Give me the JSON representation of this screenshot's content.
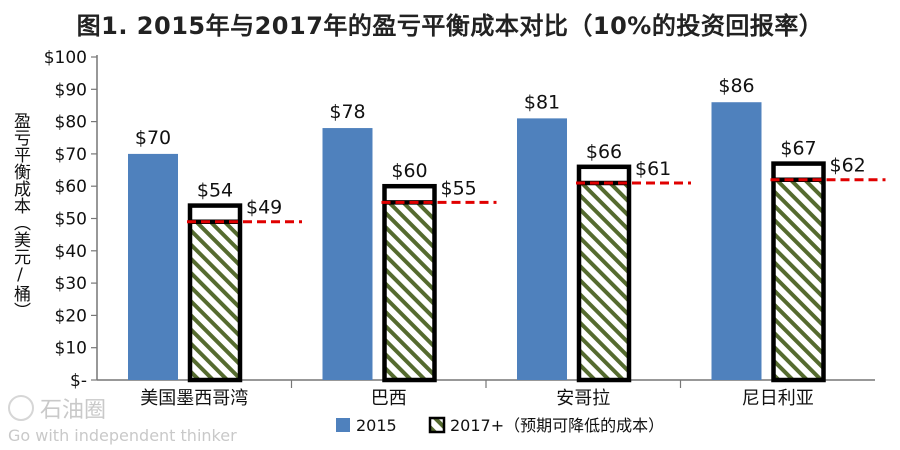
{
  "chart_data": {
    "type": "bar",
    "title": "图1. 2015年与2017年的盈亏平衡成本对比（10%的投资回报率）",
    "ylabel": "盈亏平衡成本（美元/桶）",
    "xlabel": "",
    "ylim": [
      0,
      100
    ],
    "yticks": [
      0,
      10,
      20,
      30,
      40,
      50,
      60,
      70,
      80,
      90,
      100
    ],
    "ytick_labels": [
      "$-",
      "$10",
      "$20",
      "$30",
      "$40",
      "$50",
      "$60",
      "$70",
      "$80",
      "$90",
      "$100"
    ],
    "categories": [
      "美国墨西哥湾",
      "巴西",
      "安哥拉",
      "尼日利亚"
    ],
    "series": [
      {
        "name": "2015",
        "style": "solid",
        "color": "#4f81bd",
        "values": [
          70,
          78,
          81,
          86
        ],
        "value_labels": [
          "$70",
          "$78",
          "$81",
          "$86"
        ]
      },
      {
        "name": "2017+（预期可降低的成本）",
        "style": "hatched-with-black-outline",
        "color": "#556b2f",
        "values": [
          54,
          60,
          66,
          67
        ],
        "value_labels": [
          "$54",
          "$60",
          "$66",
          "$67"
        ],
        "reduced_values": [
          49,
          55,
          61,
          62
        ],
        "reduced_value_labels": [
          "$49",
          "$55",
          "$61",
          "$62"
        ],
        "reduced_marker": "red dashed line",
        "reduced_color": "#e00000"
      }
    ],
    "legend_position": "bottom-center",
    "grid": false
  },
  "watermark": {
    "brand": "石油圈",
    "slogan": "Go with independent thinker"
  }
}
